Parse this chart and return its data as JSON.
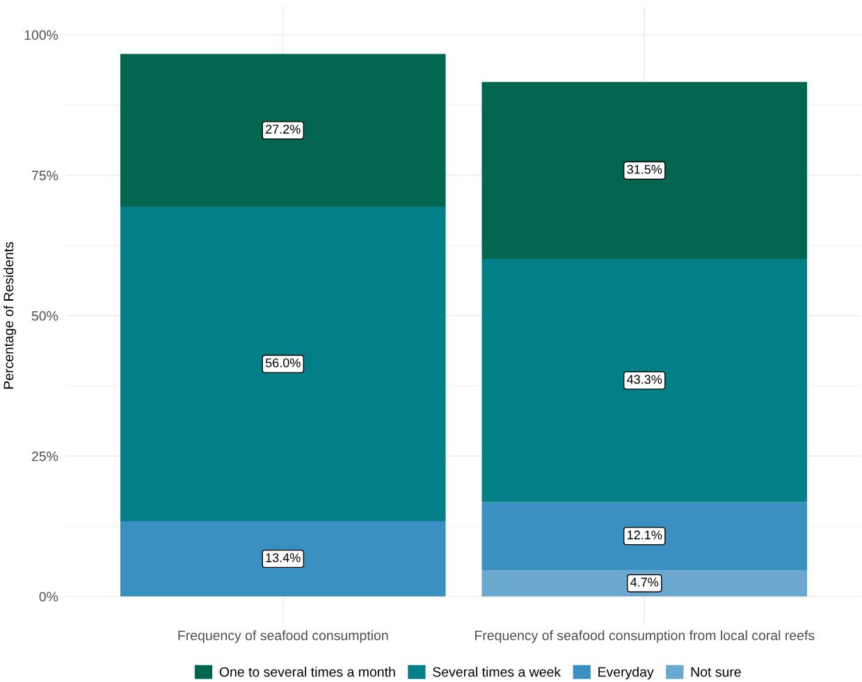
{
  "chart_data": {
    "type": "bar",
    "stacked": true,
    "categories": [
      "Frequency of seafood consumption",
      "Frequency of seafood consumption from local coral reefs"
    ],
    "series": [
      {
        "name": "Not sure",
        "color": "#6aa8cf",
        "values": [
          null,
          4.7
        ],
        "value_labels": [
          null,
          "4.7%"
        ]
      },
      {
        "name": "Everyday",
        "color": "#3a8fc1",
        "values": [
          13.4,
          12.1
        ],
        "value_labels": [
          "13.4%",
          "12.1%"
        ]
      },
      {
        "name": "Several times a week",
        "color": "#037f87",
        "values": [
          56.0,
          43.3
        ],
        "value_labels": [
          "56.0%",
          "43.3%"
        ]
      },
      {
        "name": "One to several times a month",
        "color": "#02654f",
        "values": [
          27.2,
          31.5
        ],
        "value_labels": [
          "27.2%",
          "31.5%"
        ]
      }
    ],
    "ylabel": "Percentage of Residents",
    "ylim": [
      -5,
      105
    ],
    "yticks": [
      {
        "value": 0,
        "label": "0%"
      },
      {
        "value": 12.5,
        "label": null
      },
      {
        "value": 25,
        "label": "25%"
      },
      {
        "value": 37.5,
        "label": null
      },
      {
        "value": 50,
        "label": "50%"
      },
      {
        "value": 62.5,
        "label": null
      },
      {
        "value": 75,
        "label": "75%"
      },
      {
        "value": 87.5,
        "label": null
      },
      {
        "value": 100,
        "label": "100%"
      }
    ],
    "grid": true,
    "legend": "bottom"
  }
}
